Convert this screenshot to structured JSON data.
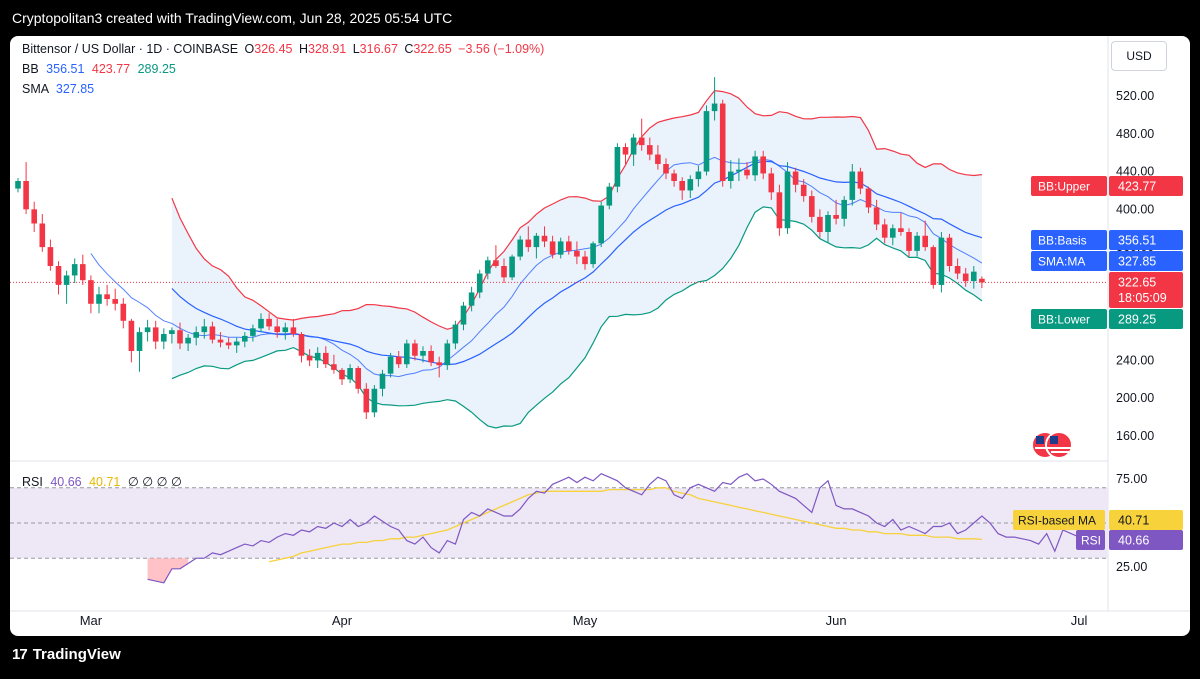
{
  "header": {
    "title": "Cryptopolitan3 created with TradingView.com, Jun 28, 2025 05:54 UTC"
  },
  "footer": {
    "brand": "TradingView"
  },
  "toolbar": {
    "currency": "USD"
  },
  "legend": {
    "symbol": "Bittensor / US Dollar · 1D · COINBASE",
    "open_label": "O",
    "open": "326.45",
    "high_label": "H",
    "high": "328.91",
    "low_label": "L",
    "low": "316.67",
    "close_label": "C",
    "close": "322.65",
    "change": "−3.56 (−1.09%)",
    "bb_label": "BB",
    "bb_basis": "356.51",
    "bb_upper": "423.77",
    "bb_lower": "289.25",
    "sma_label": "SMA",
    "sma": "327.85",
    "rsi_label": "RSI",
    "rsi": "40.66",
    "rsi_ma": "40.71",
    "rsi_extra": "∅ ∅ ∅ ∅"
  },
  "colors": {
    "up": "#089981",
    "down": "#f23645",
    "bb_upper": "#f23645",
    "bb_lower": "#089981",
    "bb_basis": "#2962ff",
    "band_fill": "#e8f1fb",
    "rsi": "#7e57c2",
    "rsi_ma": "#f7d23a",
    "rsi_band": "#ede7f6",
    "price_tag": "#f23645",
    "basis_tag": "#2962ff"
  },
  "chart_data": [
    {
      "type": "candlestick",
      "title": "Bittensor / US Dollar · 1D · COINBASE",
      "ylim": [
        125,
        565
      ],
      "y_ticks": [
        160,
        200,
        240,
        280,
        320,
        360,
        400,
        440,
        480,
        520
      ],
      "x_ticks": [
        {
          "label": "Mar",
          "index": 9
        },
        {
          "label": "Apr",
          "index": 40
        },
        {
          "label": "May",
          "index": 70
        },
        {
          "label": "Jun",
          "index": 101
        },
        {
          "label": "Jul",
          "index": 131
        }
      ],
      "axis_labels": [
        {
          "label": "BB:Upper",
          "value": "423.77",
          "y": 423.77,
          "color": "#f23645"
        },
        {
          "label": "BB:Basis",
          "value": "356.51",
          "y": 356.51,
          "color": "#2962ff"
        },
        {
          "label": "SMA:MA",
          "value": "327.85",
          "y": 327.85,
          "color": "#2962ff"
        },
        {
          "label": "",
          "value": "322.65",
          "y": 322.65,
          "color": "#f23645",
          "sub": "18:05:09"
        },
        {
          "label": "BB:Lower",
          "value": "289.25",
          "y": 289.25,
          "color": "#089981"
        }
      ],
      "last_price": 322.65,
      "ohlc": [
        [
          422,
          433,
          418,
          430
        ],
        [
          430,
          450,
          395,
          400
        ],
        [
          400,
          408,
          376,
          385
        ],
        [
          385,
          395,
          355,
          360
        ],
        [
          360,
          368,
          335,
          340
        ],
        [
          340,
          345,
          310,
          320
        ],
        [
          320,
          335,
          300,
          330
        ],
        [
          330,
          348,
          322,
          342
        ],
        [
          342,
          352,
          320,
          325
        ],
        [
          325,
          330,
          290,
          300
        ],
        [
          300,
          318,
          290,
          310
        ],
        [
          310,
          320,
          298,
          305
        ],
        [
          305,
          316,
          293,
          300
        ],
        [
          300,
          306,
          274,
          282
        ],
        [
          282,
          284,
          238,
          250
        ],
        [
          250,
          275,
          228,
          270
        ],
        [
          270,
          283,
          260,
          275
        ],
        [
          275,
          282,
          252,
          260
        ],
        [
          260,
          274,
          252,
          268
        ],
        [
          268,
          275,
          258,
          272
        ],
        [
          272,
          280,
          252,
          258
        ],
        [
          258,
          268,
          250,
          264
        ],
        [
          264,
          276,
          256,
          270
        ],
        [
          270,
          284,
          263,
          276
        ],
        [
          276,
          281,
          258,
          262
        ],
        [
          262,
          270,
          254,
          259
        ],
        [
          259,
          264,
          252,
          256
        ],
        [
          256,
          264,
          248,
          260
        ],
        [
          260,
          270,
          254,
          266
        ],
        [
          266,
          278,
          260,
          274
        ],
        [
          274,
          290,
          270,
          284
        ],
        [
          284,
          290,
          272,
          276
        ],
        [
          276,
          284,
          264,
          270
        ],
        [
          270,
          280,
          262,
          275
        ],
        [
          275,
          284,
          265,
          268
        ],
        [
          268,
          270,
          238,
          245
        ],
        [
          245,
          252,
          234,
          240
        ],
        [
          240,
          254,
          232,
          248
        ],
        [
          248,
          255,
          232,
          236
        ],
        [
          236,
          246,
          226,
          230
        ],
        [
          230,
          232,
          214,
          220
        ],
        [
          220,
          236,
          216,
          232
        ],
        [
          232,
          234,
          205,
          210
        ],
        [
          210,
          216,
          178,
          185
        ],
        [
          185,
          214,
          180,
          210
        ],
        [
          210,
          230,
          202,
          226
        ],
        [
          226,
          248,
          222,
          244
        ],
        [
          244,
          250,
          232,
          236
        ],
        [
          236,
          262,
          232,
          258
        ],
        [
          258,
          262,
          240,
          245
        ],
        [
          245,
          255,
          238,
          250
        ],
        [
          250,
          256,
          234,
          238
        ],
        [
          238,
          244,
          222,
          235
        ],
        [
          235,
          262,
          230,
          258
        ],
        [
          258,
          282,
          252,
          278
        ],
        [
          278,
          302,
          272,
          298
        ],
        [
          298,
          318,
          292,
          312
        ],
        [
          312,
          336,
          306,
          332
        ],
        [
          332,
          350,
          326,
          346
        ],
        [
          346,
          362,
          338,
          340
        ],
        [
          340,
          348,
          322,
          328
        ],
        [
          328,
          352,
          325,
          350
        ],
        [
          350,
          372,
          346,
          368
        ],
        [
          368,
          382,
          355,
          360
        ],
        [
          360,
          375,
          348,
          372
        ],
        [
          372,
          382,
          360,
          366
        ],
        [
          366,
          372,
          348,
          352
        ],
        [
          352,
          370,
          348,
          366
        ],
        [
          366,
          372,
          352,
          356
        ],
        [
          356,
          366,
          342,
          350
        ],
        [
          350,
          356,
          336,
          342
        ],
        [
          342,
          366,
          338,
          364
        ],
        [
          364,
          408,
          360,
          404
        ],
        [
          404,
          428,
          400,
          424
        ],
        [
          424,
          470,
          418,
          466
        ],
        [
          466,
          470,
          448,
          458
        ],
        [
          458,
          480,
          446,
          476
        ],
        [
          476,
          496,
          462,
          468
        ],
        [
          468,
          476,
          452,
          458
        ],
        [
          458,
          468,
          442,
          448
        ],
        [
          448,
          454,
          432,
          438
        ],
        [
          438,
          442,
          424,
          430
        ],
        [
          430,
          434,
          410,
          420
        ],
        [
          420,
          436,
          412,
          432
        ],
        [
          432,
          446,
          424,
          440
        ],
        [
          440,
          510,
          436,
          504
        ],
        [
          504,
          540,
          494,
          512
        ],
        [
          512,
          516,
          424,
          430
        ],
        [
          430,
          452,
          422,
          440
        ],
        [
          440,
          454,
          430,
          442
        ],
        [
          442,
          450,
          432,
          436
        ],
        [
          436,
          462,
          430,
          456
        ],
        [
          456,
          462,
          432,
          438
        ],
        [
          438,
          444,
          410,
          418
        ],
        [
          418,
          426,
          372,
          380
        ],
        [
          380,
          450,
          374,
          440
        ],
        [
          440,
          444,
          418,
          426
        ],
        [
          426,
          432,
          408,
          414
        ],
        [
          414,
          420,
          386,
          392
        ],
        [
          392,
          400,
          370,
          376
        ],
        [
          376,
          398,
          364,
          394
        ],
        [
          394,
          410,
          384,
          390
        ],
        [
          390,
          414,
          382,
          410
        ],
        [
          410,
          448,
          404,
          440
        ],
        [
          440,
          444,
          416,
          422
        ],
        [
          422,
          424,
          396,
          402
        ],
        [
          402,
          410,
          378,
          384
        ],
        [
          384,
          390,
          364,
          370
        ],
        [
          370,
          384,
          362,
          380
        ],
        [
          380,
          396,
          372,
          376
        ],
        [
          376,
          380,
          350,
          356
        ],
        [
          356,
          376,
          350,
          372
        ],
        [
          372,
          388,
          356,
          360
        ],
        [
          360,
          362,
          316,
          320
        ],
        [
          320,
          376,
          312,
          370
        ],
        [
          370,
          374,
          334,
          340
        ],
        [
          340,
          348,
          326,
          332
        ],
        [
          332,
          338,
          318,
          324
        ],
        [
          324,
          340,
          316,
          334
        ],
        [
          326.45,
          328.91,
          316.67,
          322.65
        ]
      ]
    },
    {
      "type": "line",
      "title": "RSI",
      "ylim": [
        0,
        100
      ],
      "y_ticks": [
        25,
        75
      ],
      "upper": 70,
      "middle": 50,
      "lower": 30,
      "axis_labels": [
        {
          "label": "RSI-based MA",
          "value": "40.71",
          "y": 40.71,
          "color": "#f7d23a"
        },
        {
          "label": "RSI",
          "value": "40.66",
          "y": 40.66,
          "color": "#7e57c2"
        }
      ],
      "series": [
        {
          "start": 16,
          "values": [
            18,
            17,
            16,
            24,
            24,
            27,
            30,
            30,
            33,
            32,
            34,
            36,
            38,
            37,
            40,
            39,
            42,
            44,
            43,
            46,
            45,
            48,
            47,
            50,
            48,
            52,
            48,
            50,
            54,
            51,
            48,
            46,
            40,
            38,
            42,
            36,
            33,
            40,
            38,
            52,
            56,
            54,
            58,
            56,
            54,
            54,
            58,
            64,
            68,
            67,
            72,
            74,
            76,
            73,
            76,
            74,
            78,
            76,
            74,
            70,
            68,
            66,
            72,
            76,
            74,
            66,
            64,
            70,
            72,
            70,
            68,
            73,
            72,
            76,
            78,
            74,
            75,
            72,
            68,
            66,
            64,
            60,
            56,
            70,
            74,
            60,
            58,
            58,
            56,
            54,
            50,
            48,
            52,
            46,
            48,
            46,
            44,
            48,
            48,
            50,
            44,
            46,
            50,
            54,
            50,
            44,
            42,
            42,
            41,
            40,
            38,
            44,
            34,
            46,
            44,
            42,
            40,
            41,
            40.66
          ]
        },
        {
          "start": 31,
          "values": [
            28,
            29,
            30,
            31,
            33,
            34,
            35,
            36,
            37,
            38,
            38,
            39,
            39,
            40,
            40,
            41,
            41,
            42,
            42,
            43,
            44,
            45,
            46,
            48,
            50,
            52,
            54,
            56,
            58,
            60,
            62,
            64,
            66,
            67,
            68,
            68,
            68,
            68,
            68,
            68,
            68,
            68,
            69,
            69,
            69,
            69,
            69,
            69,
            70,
            70,
            68,
            67,
            66,
            64,
            63,
            62,
            61,
            60,
            59,
            58,
            57,
            56,
            55,
            54,
            53,
            52,
            51,
            50,
            49,
            48,
            47,
            47,
            46,
            46,
            45,
            45,
            44,
            44,
            44,
            43,
            43,
            43,
            42,
            42,
            42,
            41,
            41,
            41,
            40.71
          ]
        }
      ]
    }
  ]
}
